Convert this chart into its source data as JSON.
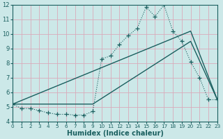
{
  "xlabel": "Humidex (Indice chaleur)",
  "bg_color": "#cce8e8",
  "grid_color": "#daaaba",
  "line_color": "#1a5f5f",
  "xlim": [
    0,
    23
  ],
  "ylim": [
    4,
    12
  ],
  "yticks": [
    4,
    5,
    6,
    7,
    8,
    9,
    10,
    11,
    12
  ],
  "xticks": [
    0,
    1,
    2,
    3,
    4,
    5,
    6,
    7,
    8,
    9,
    10,
    11,
    12,
    13,
    14,
    15,
    16,
    17,
    18,
    19,
    20,
    21,
    22,
    23
  ],
  "curve_x": [
    0,
    1,
    2,
    3,
    4,
    5,
    6,
    7,
    8,
    9,
    10,
    11,
    12,
    13,
    14,
    15,
    16,
    17,
    18,
    19,
    20,
    21,
    22,
    23
  ],
  "curve_y": [
    5.2,
    4.9,
    4.9,
    4.75,
    4.6,
    4.5,
    4.5,
    4.45,
    4.45,
    4.7,
    8.3,
    8.5,
    9.3,
    9.9,
    10.4,
    11.85,
    11.2,
    12.0,
    10.2,
    9.5,
    8.1,
    7.0,
    5.5,
    5.5
  ],
  "upper_line_x": [
    0,
    20,
    23
  ],
  "upper_line_y": [
    5.2,
    10.2,
    5.5
  ],
  "lower_line_x": [
    0,
    9,
    20,
    23
  ],
  "lower_line_y": [
    5.2,
    5.2,
    9.5,
    5.5
  ]
}
